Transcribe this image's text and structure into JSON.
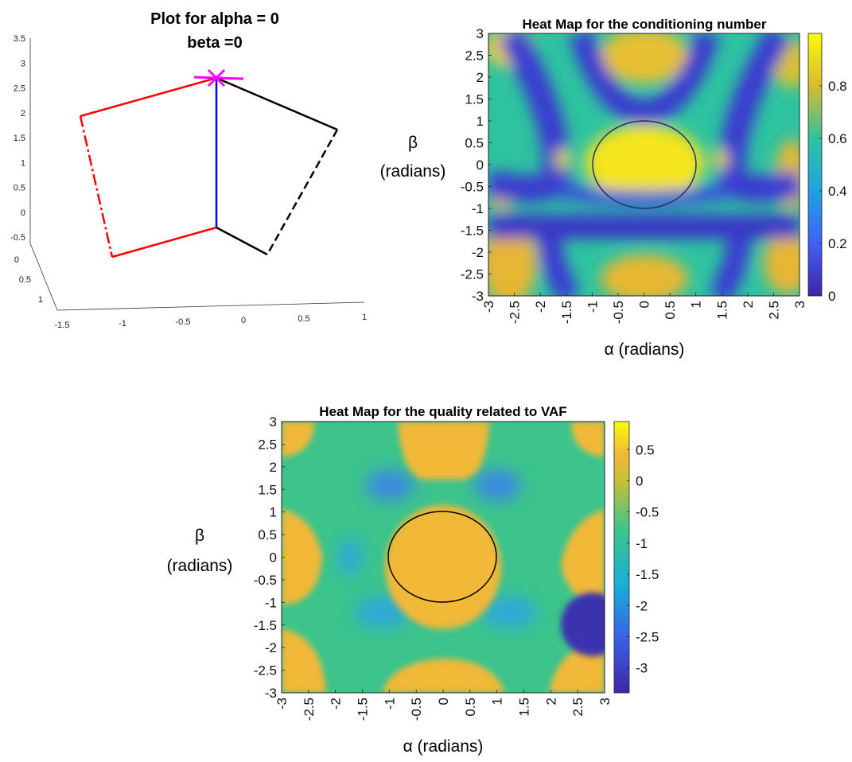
{
  "chart_data": [
    {
      "type": "line",
      "title": "Plot for alpha = 0",
      "subtitle": "beta =0",
      "projection": "3d",
      "axes": {
        "x_ticks": [
          "-1.5",
          "-1",
          "-0.5",
          "0",
          "0.5",
          "1"
        ],
        "y_ticks": [
          "0",
          "0.5",
          "1"
        ],
        "z_ticks": [
          "-0.5",
          "0",
          "0.5",
          "1",
          "1.5",
          "2",
          "2.5",
          "3",
          "3.5"
        ]
      },
      "series": [
        {
          "segment": "vertical-link",
          "color": "#0000ff",
          "style": "solid"
        },
        {
          "segment": "left-upper-link",
          "color": "#ff0000",
          "style": "solid"
        },
        {
          "segment": "left-distal-link",
          "color": "#ff0000",
          "style": "dashed"
        },
        {
          "segment": "left-lower-link",
          "color": "#ff0000",
          "style": "solid"
        },
        {
          "segment": "right-upper-link",
          "color": "#000000",
          "style": "solid"
        },
        {
          "segment": "right-distal-link",
          "color": "#000000",
          "style": "dashed"
        },
        {
          "segment": "right-lower-link",
          "color": "#000000",
          "style": "solid"
        },
        {
          "segment": "top-marker",
          "color": "#ff00ff",
          "style": "cross"
        }
      ],
      "grid": false
    },
    {
      "type": "heatmap",
      "title": "Heat Map for the conditioning number",
      "xlabel": "α (radians)",
      "ylabel": "β (radians)",
      "xlim": [
        -3,
        3
      ],
      "ylim": [
        -3,
        3
      ],
      "x_ticks": [
        "-3",
        "-2.5",
        "-2",
        "-1.5",
        "-1",
        "-0.5",
        "0",
        "0.5",
        "1",
        "1.5",
        "2",
        "2.5",
        "3"
      ],
      "y_ticks": [
        "3",
        "2.5",
        "2",
        "1.5",
        "1",
        "0.5",
        "0",
        "-0.5",
        "-1",
        "-1.5",
        "-2",
        "-2.5",
        "-3"
      ],
      "colorbar": {
        "range": [
          0,
          1
        ],
        "ticks": [
          "0.8",
          "0.6",
          "0.4",
          "0.2",
          "0"
        ]
      },
      "colormap": "parula",
      "overlay_circle": {
        "center": [
          0,
          0
        ],
        "radius": 1,
        "color": "#2b2b6b"
      }
    },
    {
      "type": "heatmap",
      "title": "Heat Map for the quality related to VAF",
      "xlabel": "α (radians)",
      "ylabel": "β (radians)",
      "xlim": [
        -3,
        3
      ],
      "ylim": [
        -3,
        3
      ],
      "x_ticks": [
        "-3",
        "-2.5",
        "-2",
        "-1.5",
        "-1",
        "-0.5",
        "0",
        "0.5",
        "1",
        "1.5",
        "2",
        "2.5",
        "3"
      ],
      "y_ticks": [
        "3",
        "2.5",
        "2",
        "1.5",
        "1",
        "0.5",
        "0",
        "-0.5",
        "-1",
        "-1.5",
        "-2",
        "-2.5",
        "-3"
      ],
      "colorbar": {
        "range": [
          -3.4,
          0.95
        ],
        "ticks": [
          "0.5",
          "0",
          "-0.5",
          "-1",
          "-1.5",
          "-2",
          "-2.5",
          "-3"
        ]
      },
      "colormap": "parula",
      "overlay_circle": {
        "center": [
          0,
          0
        ],
        "radius": 1,
        "color": "#000000"
      }
    }
  ]
}
